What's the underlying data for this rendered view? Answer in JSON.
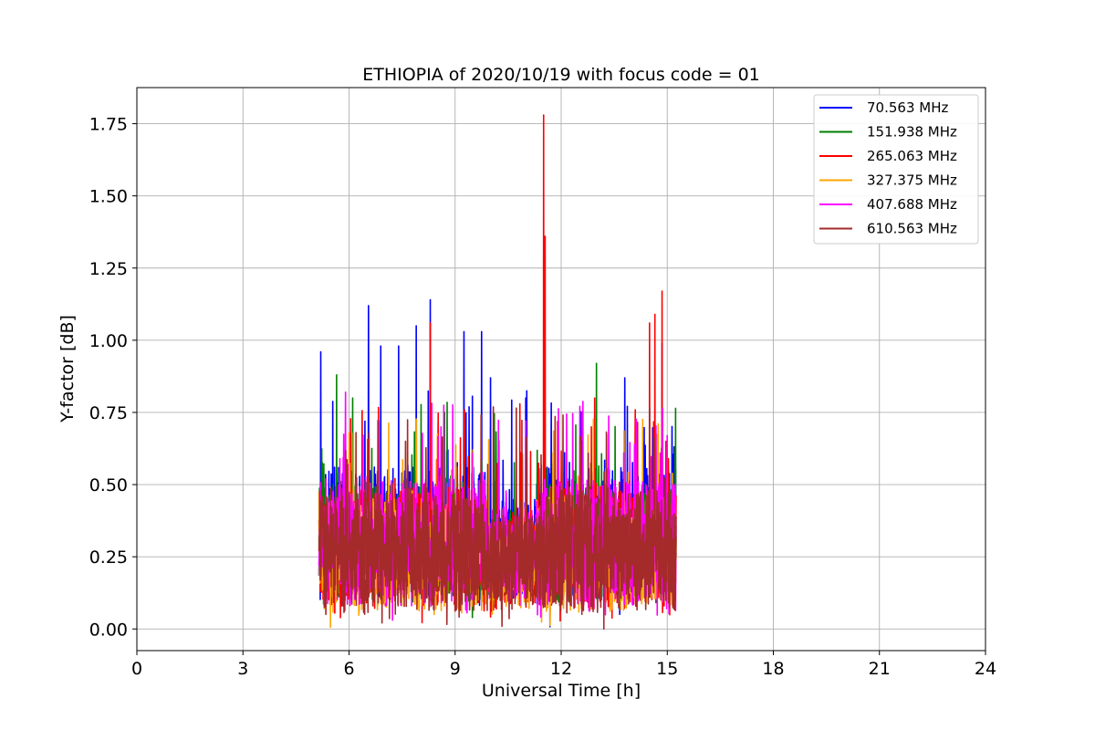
{
  "chart_data": {
    "type": "line",
    "title": "ETHIOPIA of 2020/10/19 with focus code = 01",
    "xlabel": "Universal Time [h]",
    "ylabel": "Y-factor [dB]",
    "xlim": [
      0,
      24
    ],
    "ylim": [
      -0.075,
      1.875
    ],
    "x_ticks": [
      0,
      3,
      6,
      9,
      12,
      15,
      18,
      21,
      24
    ],
    "x_tick_labels": [
      "0",
      "3",
      "6",
      "9",
      "12",
      "15",
      "18",
      "21",
      "24"
    ],
    "y_ticks": [
      0.0,
      0.25,
      0.5,
      0.75,
      1.0,
      1.25,
      1.5,
      1.75
    ],
    "y_tick_labels": [
      "0.00",
      "0.25",
      "0.50",
      "0.75",
      "1.00",
      "1.25",
      "1.50",
      "1.75"
    ],
    "grid": true,
    "legend_position": "top-right",
    "data_x_range": [
      5.15,
      15.25
    ],
    "series": [
      {
        "name": " 70.563 MHz",
        "color": "#0000ff",
        "peaks": [
          [
            5.2,
            0.96
          ],
          [
            6.55,
            1.12
          ],
          [
            6.9,
            0.98
          ],
          [
            7.4,
            0.98
          ],
          [
            7.9,
            1.05
          ],
          [
            8.3,
            1.14
          ],
          [
            9.25,
            1.03
          ],
          [
            9.75,
            1.03
          ],
          [
            10.0,
            0.87
          ],
          [
            11.0,
            0.8
          ],
          [
            13.8,
            0.87
          ],
          [
            14.85,
            0.99
          ]
        ]
      },
      {
        "name": "151.938 MHz",
        "color": "#008000",
        "peaks": [
          [
            5.65,
            0.88
          ],
          [
            6.1,
            0.8
          ],
          [
            13.0,
            0.92
          ],
          [
            8.7,
            0.75
          ],
          [
            12.6,
            0.65
          ]
        ]
      },
      {
        "name": "265.063 MHz",
        "color": "#ff0000",
        "peaks": [
          [
            11.5,
            1.78
          ],
          [
            11.55,
            1.36
          ],
          [
            8.3,
            1.06
          ],
          [
            14.5,
            1.06
          ],
          [
            14.65,
            1.09
          ],
          [
            14.85,
            1.17
          ],
          [
            12.95,
            0.8
          ],
          [
            12.85,
            0.7
          ]
        ]
      },
      {
        "name": "327.375 MHz",
        "color": "#ffa500",
        "peaks": [
          [
            6.0,
            0.68
          ],
          [
            9.5,
            0.62
          ]
        ]
      },
      {
        "name": "407.688 MHz",
        "color": "#ff00ff",
        "peaks": [
          [
            5.9,
            0.82
          ],
          [
            6.85,
            0.72
          ],
          [
            8.6,
            0.7
          ],
          [
            11.0,
            0.72
          ],
          [
            15.0,
            0.67
          ]
        ]
      },
      {
        "name": "610.563 MHz",
        "color": "#a52a2a",
        "peaks": [
          [
            6.2,
            0.68
          ],
          [
            7.6,
            0.65
          ]
        ]
      }
    ]
  }
}
